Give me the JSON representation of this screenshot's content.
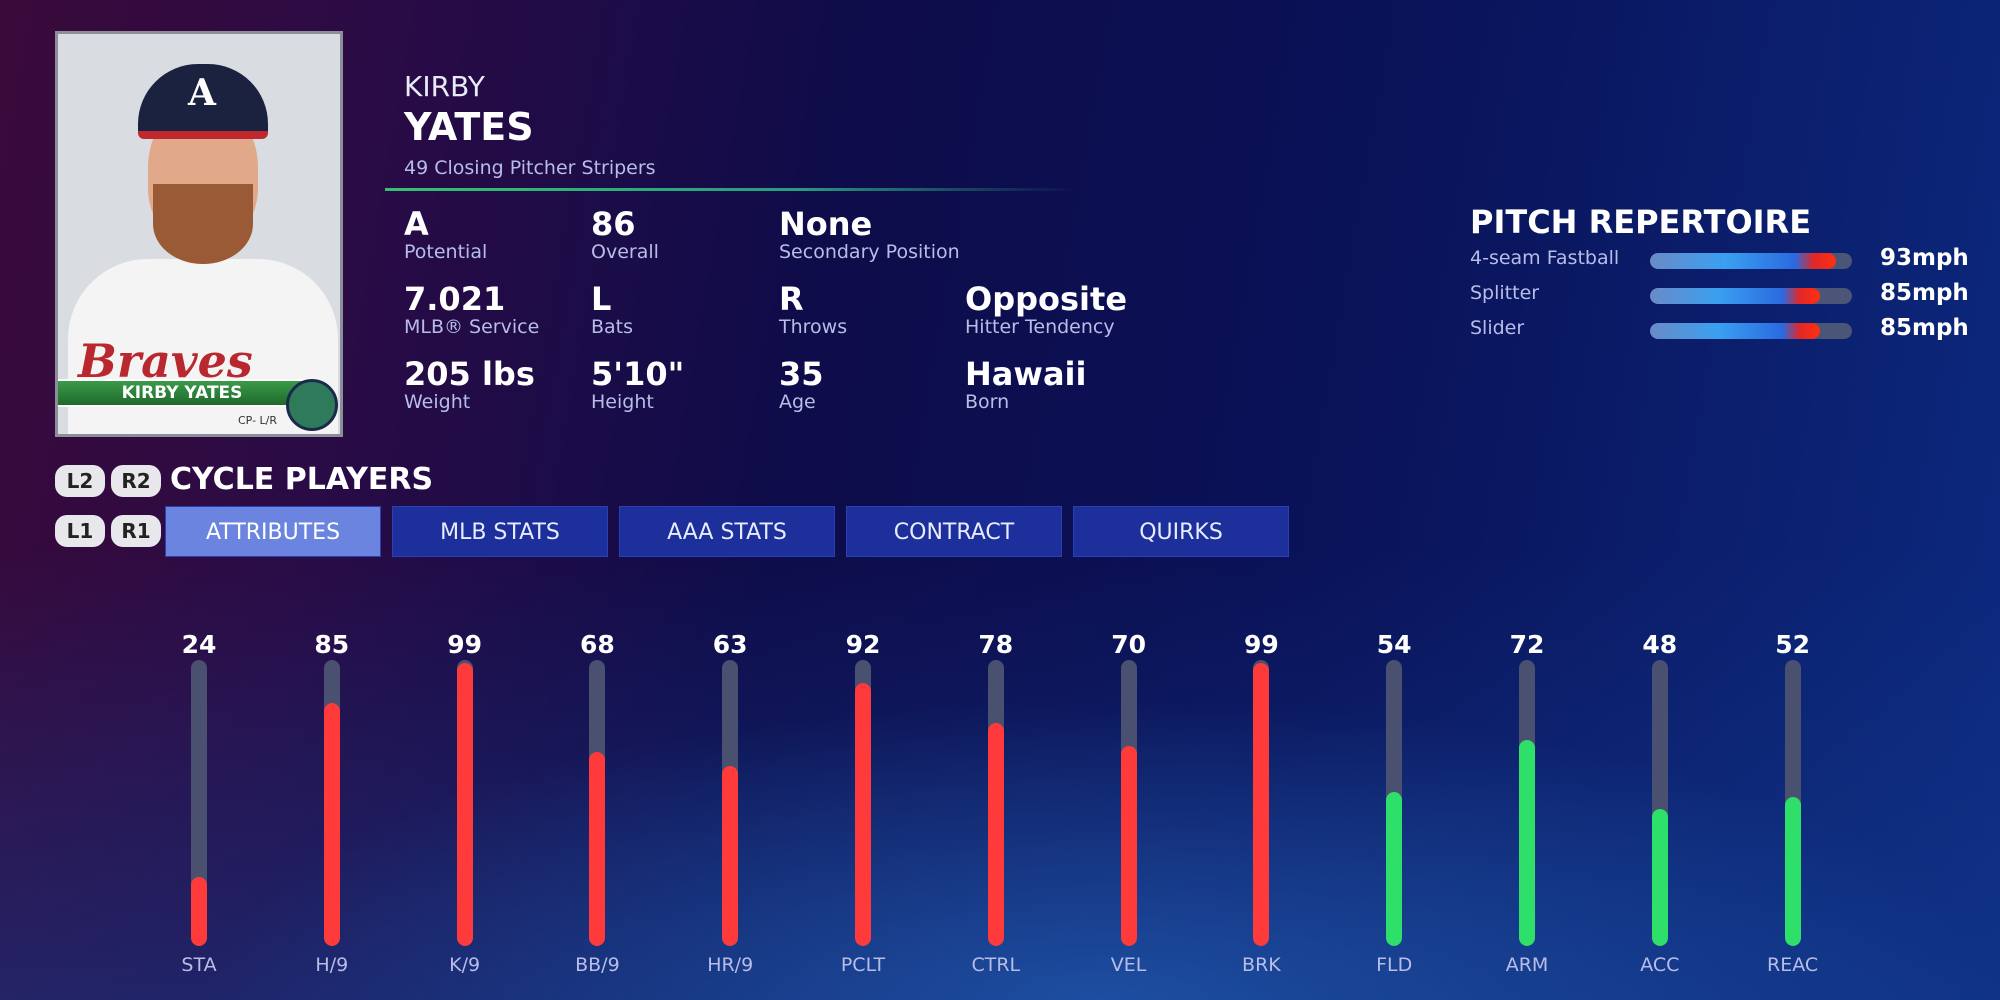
{
  "player": {
    "first_name": "KIRBY",
    "last_name": "YATES",
    "subtitle": "49  Closing Pitcher  Stripers",
    "card": {
      "name": "KIRBY YATES",
      "position": "CP- L/R",
      "team_script": "Braves",
      "cap_letter": "A"
    }
  },
  "info": [
    {
      "value": "A",
      "label": "Potential"
    },
    {
      "value": "86",
      "label": "Overall"
    },
    {
      "value": "None",
      "label": "Secondary Position"
    },
    {
      "value": "7.021",
      "label": "MLB® Service"
    },
    {
      "value": "L",
      "label": "Bats"
    },
    {
      "value": "R",
      "label": "Throws"
    },
    {
      "value": "Opposite",
      "label": "Hitter Tendency"
    },
    {
      "value": "205 lbs",
      "label": "Weight"
    },
    {
      "value": "5'10\"",
      "label": "Height"
    },
    {
      "value": "35",
      "label": "Age"
    },
    {
      "value": "Hawaii",
      "label": "Born"
    }
  ],
  "pitch_repertoire": {
    "title": "PITCH REPERTOIRE",
    "pitches": [
      {
        "name": "4-seam Fastball",
        "speed": "93mph",
        "fill_pct": 92
      },
      {
        "name": "Splitter",
        "speed": "85mph",
        "fill_pct": 84
      },
      {
        "name": "Slider",
        "speed": "85mph",
        "fill_pct": 84
      }
    ]
  },
  "controls": {
    "l2": "L2",
    "r2": "R2",
    "l1": "L1",
    "r1": "R1",
    "cycle_label": "CYCLE PLAYERS"
  },
  "tabs": [
    {
      "label": "ATTRIBUTES",
      "active": true
    },
    {
      "label": "MLB STATS"
    },
    {
      "label": "AAA STATS"
    },
    {
      "label": "CONTRACT"
    },
    {
      "label": "QUIRKS"
    }
  ],
  "colors": {
    "pitching": "#ff3a3a",
    "fielding": "#2ee06a",
    "track": "#4a5070"
  },
  "attributes": [
    {
      "label": "STA",
      "value": 24,
      "group": "pitching"
    },
    {
      "label": "H/9",
      "value": 85,
      "group": "pitching"
    },
    {
      "label": "K/9",
      "value": 99,
      "group": "pitching"
    },
    {
      "label": "BB/9",
      "value": 68,
      "group": "pitching"
    },
    {
      "label": "HR/9",
      "value": 63,
      "group": "pitching"
    },
    {
      "label": "PCLT",
      "value": 92,
      "group": "pitching"
    },
    {
      "label": "CTRL",
      "value": 78,
      "group": "pitching"
    },
    {
      "label": "VEL",
      "value": 70,
      "group": "pitching"
    },
    {
      "label": "BRK",
      "value": 99,
      "group": "pitching"
    },
    {
      "label": "FLD",
      "value": 54,
      "group": "fielding"
    },
    {
      "label": "ARM",
      "value": 72,
      "group": "fielding"
    },
    {
      "label": "ACC",
      "value": 48,
      "group": "fielding"
    },
    {
      "label": "REAC",
      "value": 52,
      "group": "fielding"
    }
  ]
}
